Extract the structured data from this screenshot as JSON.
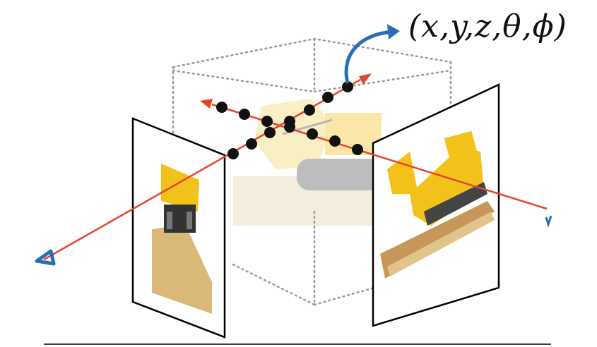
{
  "figure": {
    "coord_label": "(x,y,z,θ,ϕ)"
  },
  "colors": {
    "ray": "#e8442a",
    "arrow_blue": "#2a6fb5",
    "box_dotted": "#9a9a9a",
    "sample_point": "#111111",
    "lego_yellow": "#f2c21a",
    "base_tan": "#d9b878"
  },
  "icons": [
    "camera-icon",
    "arrow-up-icon"
  ]
}
